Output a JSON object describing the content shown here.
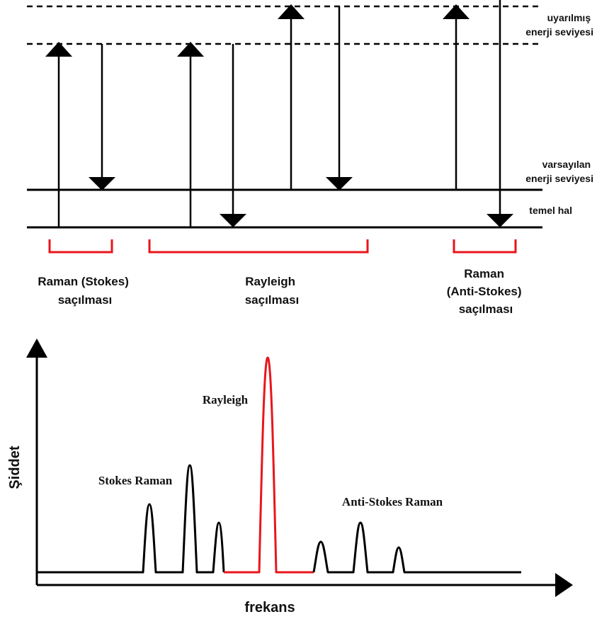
{
  "energy_diagram": {
    "levels": {
      "excited": [
        "uyarılmış",
        "enerji seviyesi"
      ],
      "virtual": [
        "varsayılan",
        "enerji seviyesi"
      ],
      "ground": "temel hal"
    },
    "groups": {
      "stokes": [
        "Raman (Stokes)",
        "saçılması"
      ],
      "rayleigh": [
        "Rayleigh",
        "saçılması"
      ],
      "anti_stokes": [
        "Raman",
        "(Anti-Stokes)",
        "saçılması"
      ]
    },
    "colors": {
      "bracket": "#e8161b",
      "line": "#000000"
    }
  },
  "spectrum": {
    "ylabel": "Şiddet",
    "xlabel": "frekans",
    "labels": {
      "stokes": "Stokes Raman",
      "rayleigh": "Rayleigh",
      "anti_stokes": "Anti-Stokes Raman"
    },
    "colors": {
      "rayleigh": "#e8161b",
      "raman": "#000000"
    }
  }
}
